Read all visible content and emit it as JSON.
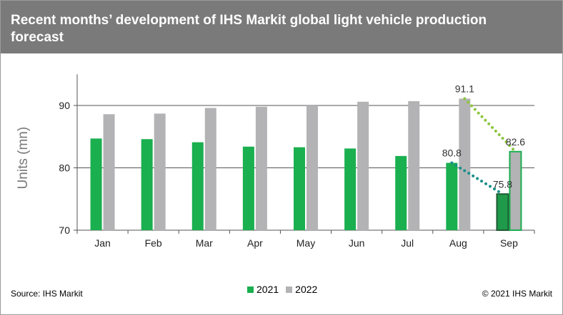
{
  "title": "Recent months’ development of IHS Markit global light vehicle production forecast",
  "source": "Source: IHS Markit",
  "copyright": "© 2021 IHS Markit",
  "colors": {
    "header_bg": "#7a7a7a",
    "series_2021": "#1aaf4f",
    "series_2022": "#b3b3b5",
    "dot_2022": "#8cc63f",
    "dot_2021": "#1a8f8a",
    "sep_2021_border": "#1e5c33"
  },
  "chart_data": {
    "type": "bar",
    "ylabel": "Units (mn)",
    "xlabel": "",
    "ylim": [
      70,
      95
    ],
    "yticks": [
      70,
      80,
      90
    ],
    "categories": [
      "Jan",
      "Feb",
      "Mar",
      "Apr",
      "May",
      "Jun",
      "Jul",
      "Aug",
      "Sep"
    ],
    "series": [
      {
        "name": "2021",
        "values": [
          84.7,
          84.6,
          84.1,
          83.4,
          83.3,
          83.1,
          81.9,
          80.8,
          75.8
        ]
      },
      {
        "name": "2022",
        "values": [
          88.6,
          88.7,
          89.6,
          89.8,
          90.0,
          90.6,
          90.7,
          91.1,
          82.6
        ]
      }
    ],
    "data_labels": [
      {
        "series": "2021",
        "category": "Aug",
        "text": "80.8"
      },
      {
        "series": "2021",
        "category": "Sep",
        "text": "75.8"
      },
      {
        "series": "2022",
        "category": "Aug",
        "text": "91.1"
      },
      {
        "series": "2022",
        "category": "Sep",
        "text": "82.6"
      }
    ],
    "grid": true,
    "legend_position": "bottom"
  }
}
